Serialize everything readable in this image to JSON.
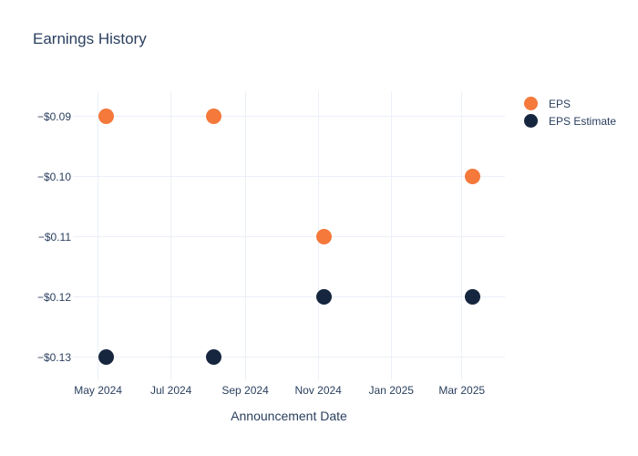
{
  "chart_data": {
    "type": "scatter",
    "title": "Earnings History",
    "xlabel": "Announcement Date",
    "ylabel": "",
    "grid": true,
    "legend_position": "right-top",
    "background": "#ffffff",
    "grid_color": "#ebf0f8",
    "text_color": "#2a3f5f",
    "marker_size_px": 17,
    "x_range": [
      "2024-04-10",
      "2025-04-06"
    ],
    "y_range": [
      -0.1338,
      -0.0858
    ],
    "x_ticks": [
      {
        "date": "2024-05-01",
        "label": "May 2024"
      },
      {
        "date": "2024-07-01",
        "label": "Jul 2024"
      },
      {
        "date": "2024-09-01",
        "label": "Sep 2024"
      },
      {
        "date": "2024-11-01",
        "label": "Nov 2024"
      },
      {
        "date": "2025-01-01",
        "label": "Jan 2025"
      },
      {
        "date": "2025-03-01",
        "label": "Mar 2025"
      }
    ],
    "y_ticks": [
      {
        "value": -0.09,
        "label": "−$0.09"
      },
      {
        "value": -0.1,
        "label": "−$0.10"
      },
      {
        "value": -0.11,
        "label": "−$0.11"
      },
      {
        "value": -0.12,
        "label": "−$0.12"
      },
      {
        "value": -0.13,
        "label": "−$0.13"
      }
    ],
    "series": [
      {
        "name": "EPS Estimate",
        "color": "#16263e",
        "points": [
          {
            "date": "2024-05-08",
            "value": -0.13
          },
          {
            "date": "2024-08-06",
            "value": -0.13
          },
          {
            "date": "2024-11-06",
            "value": -0.12
          },
          {
            "date": "2025-03-10",
            "value": -0.12
          }
        ]
      },
      {
        "name": "EPS",
        "color": "#f4793b",
        "points": [
          {
            "date": "2024-05-08",
            "value": -0.09
          },
          {
            "date": "2024-08-06",
            "value": -0.09
          },
          {
            "date": "2024-11-06",
            "value": -0.11
          },
          {
            "date": "2025-03-10",
            "value": -0.1
          }
        ]
      }
    ]
  }
}
